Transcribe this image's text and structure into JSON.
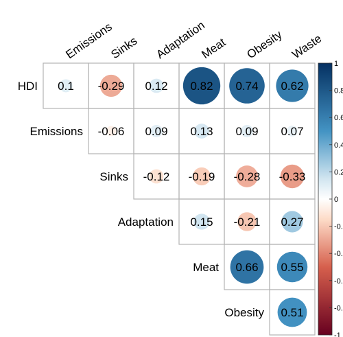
{
  "chart_data": {
    "type": "heatmap",
    "variant": "upper-triangle-correlogram-circles",
    "columns": [
      "Emissions",
      "Sinks",
      "Adaptation",
      "Meat",
      "Obesity",
      "Waste"
    ],
    "rows": [
      "HDI",
      "Emissions",
      "Sinks",
      "Adaptation",
      "Meat",
      "Obesity"
    ],
    "cells": [
      {
        "row": "HDI",
        "col": "Emissions",
        "value": 0.1,
        "label": "0.1"
      },
      {
        "row": "HDI",
        "col": "Sinks",
        "value": -0.29,
        "label": "-0.29"
      },
      {
        "row": "HDI",
        "col": "Adaptation",
        "value": 0.12,
        "label": "0.12"
      },
      {
        "row": "HDI",
        "col": "Meat",
        "value": 0.82,
        "label": "0.82"
      },
      {
        "row": "HDI",
        "col": "Obesity",
        "value": 0.74,
        "label": "0.74"
      },
      {
        "row": "HDI",
        "col": "Waste",
        "value": 0.62,
        "label": "0.62"
      },
      {
        "row": "Emissions",
        "col": "Sinks",
        "value": -0.06,
        "label": "-0.06"
      },
      {
        "row": "Emissions",
        "col": "Adaptation",
        "value": 0.09,
        "label": "0.09"
      },
      {
        "row": "Emissions",
        "col": "Meat",
        "value": 0.13,
        "label": "0.13"
      },
      {
        "row": "Emissions",
        "col": "Obesity",
        "value": 0.09,
        "label": "0.09"
      },
      {
        "row": "Emissions",
        "col": "Waste",
        "value": 0.07,
        "label": "0.07"
      },
      {
        "row": "Sinks",
        "col": "Adaptation",
        "value": -0.12,
        "label": "-0.12"
      },
      {
        "row": "Sinks",
        "col": "Meat",
        "value": -0.19,
        "label": "-0.19"
      },
      {
        "row": "Sinks",
        "col": "Obesity",
        "value": -0.28,
        "label": "-0.28"
      },
      {
        "row": "Sinks",
        "col": "Waste",
        "value": -0.33,
        "label": "-0.33"
      },
      {
        "row": "Adaptation",
        "col": "Meat",
        "value": 0.15,
        "label": "0.15"
      },
      {
        "row": "Adaptation",
        "col": "Obesity",
        "value": -0.21,
        "label": "-0.21"
      },
      {
        "row": "Adaptation",
        "col": "Waste",
        "value": 0.27,
        "label": "0.27"
      },
      {
        "row": "Meat",
        "col": "Obesity",
        "value": 0.66,
        "label": "0.66"
      },
      {
        "row": "Meat",
        "col": "Waste",
        "value": 0.55,
        "label": "0.55"
      },
      {
        "row": "Obesity",
        "col": "Waste",
        "value": 0.51,
        "label": "0.51"
      }
    ],
    "colorbar": {
      "range": [
        -1,
        1
      ],
      "ticks": [
        "1",
        "0.8",
        "0.6",
        "0.4",
        "0.2",
        "0",
        "-0.2",
        "-0.4",
        "-0.6",
        "-0.8",
        "-1"
      ],
      "tick_values": [
        1,
        0.8,
        0.6,
        0.4,
        0.2,
        0,
        -0.2,
        -0.4,
        -0.6,
        -0.8,
        -1
      ],
      "placement": "right",
      "colors": {
        "neg_end": "#67001f",
        "neg_mid": "#d6604d",
        "neg_low": "#fddbc7",
        "zero": "#ffffff",
        "pos_low": "#d1e5f0",
        "pos_mid": "#4393c3",
        "pos_end": "#053061"
      }
    },
    "grid": true,
    "legend": "right"
  }
}
